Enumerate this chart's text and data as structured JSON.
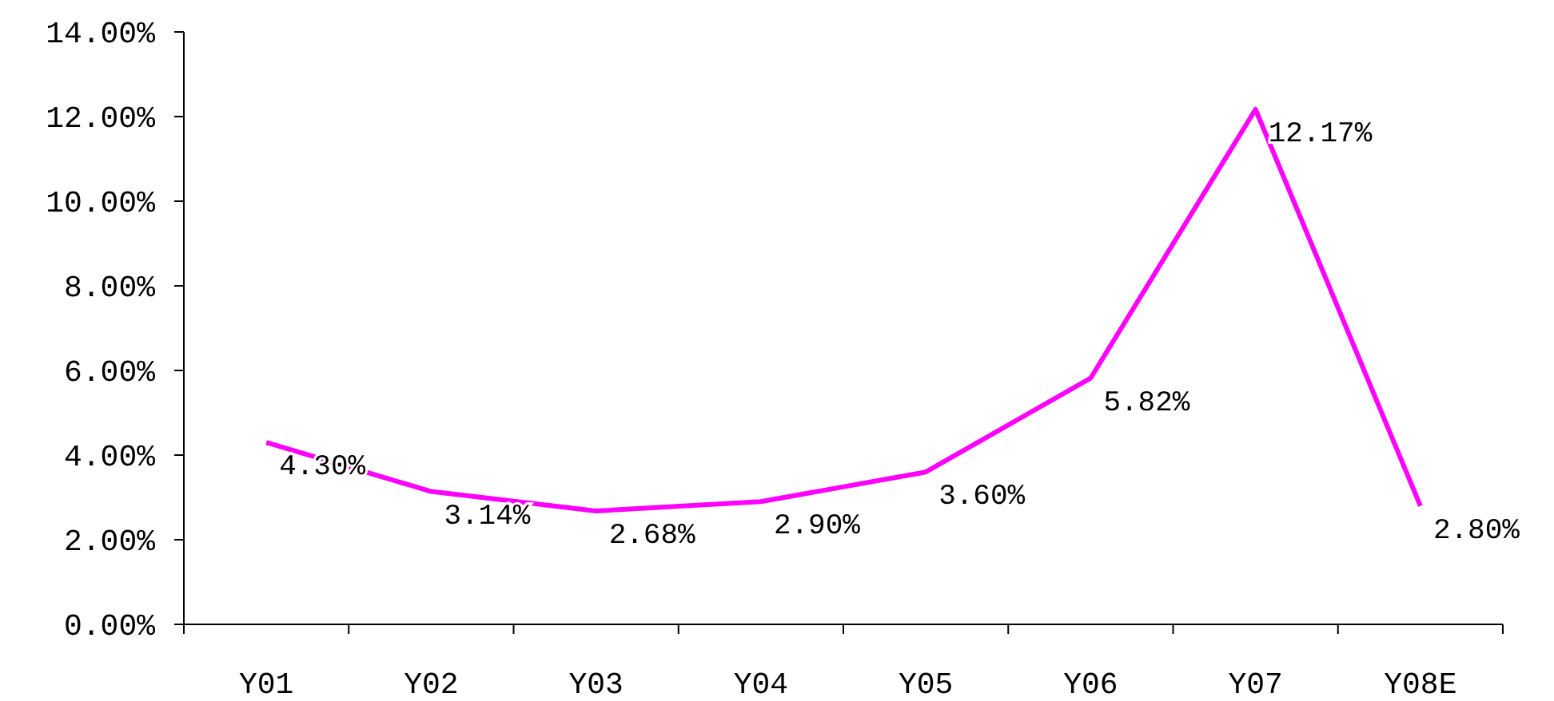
{
  "chart_data": {
    "type": "line",
    "categories": [
      "Y01",
      "Y02",
      "Y03",
      "Y04",
      "Y05",
      "Y06",
      "Y07",
      "Y08E"
    ],
    "values": [
      4.3,
      3.14,
      2.68,
      2.9,
      3.6,
      5.82,
      12.17,
      2.8
    ],
    "value_labels": [
      "4.30%",
      "3.14%",
      "2.68%",
      "2.90%",
      "3.60%",
      "5.82%",
      "12.17%",
      "2.80%"
    ],
    "color": "#ff00ff",
    "ylim": [
      0,
      14
    ],
    "yticks": [
      {
        "value": 0,
        "label": "0.00%"
      },
      {
        "value": 2,
        "label": "2.00%"
      },
      {
        "value": 4,
        "label": "4.00%"
      },
      {
        "value": 6,
        "label": "6.00%"
      },
      {
        "value": 8,
        "label": "8.00%"
      },
      {
        "value": 10,
        "label": "10.00%"
      },
      {
        "value": 12,
        "label": "12.00%"
      },
      {
        "value": 14,
        "label": "14.00%"
      }
    ],
    "grid": false,
    "marker": "none",
    "line_style": "solid"
  }
}
